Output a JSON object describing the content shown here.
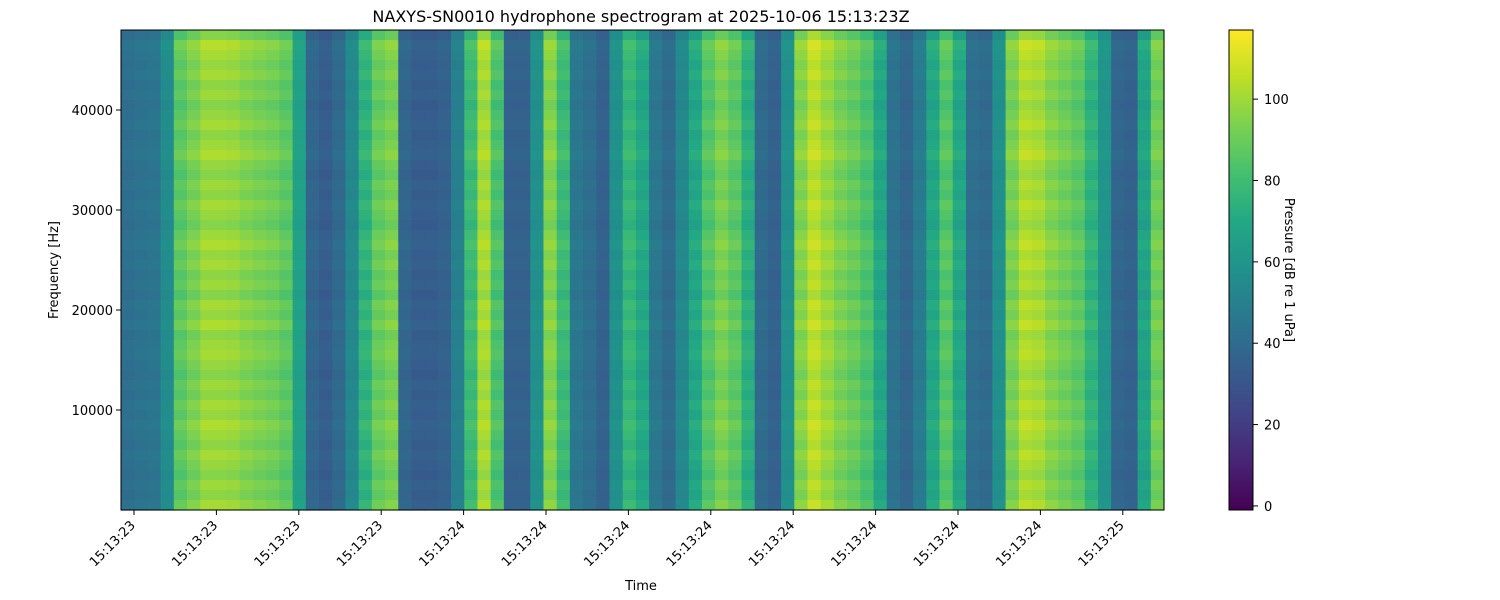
{
  "chart_data": {
    "type": "heatmap",
    "title": "NAXYS-SN0010 hydrophone spectrogram at 2025-10-06 15:13:23Z",
    "xlabel": "Time",
    "ylabel": "Frequency [Hz]",
    "colorbar_label": "Pressure [dB re 1 uPa]",
    "colormap": "viridis",
    "color_range": [
      -1,
      117
    ],
    "ylim": [
      0,
      48000
    ],
    "x_ticks": [
      "15:13:23",
      "15:13:23",
      "15:13:23",
      "15:13:23",
      "15:13:24",
      "15:13:24",
      "15:13:24",
      "15:13:24",
      "15:13:24",
      "15:13:24",
      "15:13:24",
      "15:13:24",
      "15:13:25"
    ],
    "y_ticks": [
      10000,
      20000,
      30000,
      40000
    ],
    "colorbar_ticks": [
      0,
      20,
      40,
      60,
      80,
      100
    ],
    "time_columns_db": [
      44,
      46,
      47,
      58,
      92,
      98,
      104,
      104,
      103,
      100,
      98,
      96,
      92,
      68,
      40,
      36,
      42,
      56,
      80,
      94,
      98,
      40,
      36,
      36,
      38,
      52,
      84,
      106,
      88,
      38,
      38,
      60,
      100,
      84,
      48,
      44,
      38,
      60,
      82,
      74,
      48,
      42,
      56,
      74,
      90,
      98,
      92,
      78,
      42,
      38,
      60,
      100,
      110,
      104,
      98,
      94,
      88,
      74,
      46,
      40,
      50,
      74,
      90,
      74,
      44,
      42,
      60,
      98,
      108,
      106,
      100,
      96,
      92,
      80,
      62,
      40,
      38,
      72,
      96
    ],
    "frequency_profile_db": [
      6,
      0,
      2,
      4,
      2,
      5,
      3,
      6,
      4,
      2,
      5,
      3,
      1,
      4,
      6,
      3,
      5,
      2,
      4,
      6,
      3,
      1,
      4,
      2,
      5,
      3,
      6,
      2,
      4,
      1,
      5,
      3,
      2,
      4,
      6,
      3,
      5,
      2,
      4,
      1,
      3,
      5,
      2,
      4,
      6,
      3,
      5,
      2
    ]
  }
}
